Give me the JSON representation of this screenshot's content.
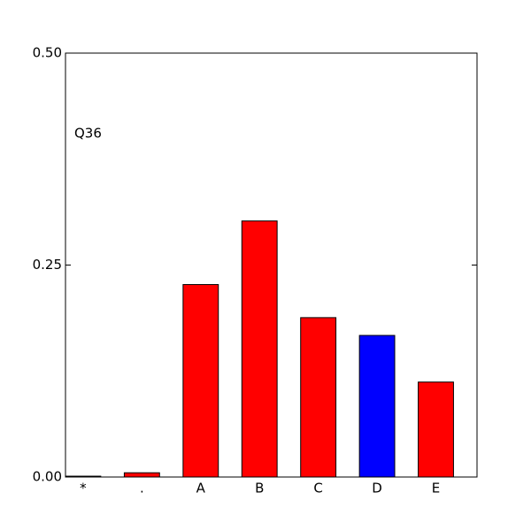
{
  "chart_data": {
    "type": "bar",
    "annotation": "Q36",
    "categories": [
      "*",
      ".",
      "A",
      "B",
      "C",
      "D",
      "E"
    ],
    "values": [
      0.001,
      0.005,
      0.227,
      0.302,
      0.188,
      0.167,
      0.112
    ],
    "colors": [
      "#ff0000",
      "#ff0000",
      "#ff0000",
      "#ff0000",
      "#ff0000",
      "#0000ff",
      "#ff0000"
    ],
    "ylim": [
      0,
      0.5
    ],
    "yticks": [
      {
        "value": 0,
        "label": "0.00"
      },
      {
        "value": 0.25,
        "label": "0.25"
      },
      {
        "value": 0.5,
        "label": "0.50"
      }
    ]
  }
}
